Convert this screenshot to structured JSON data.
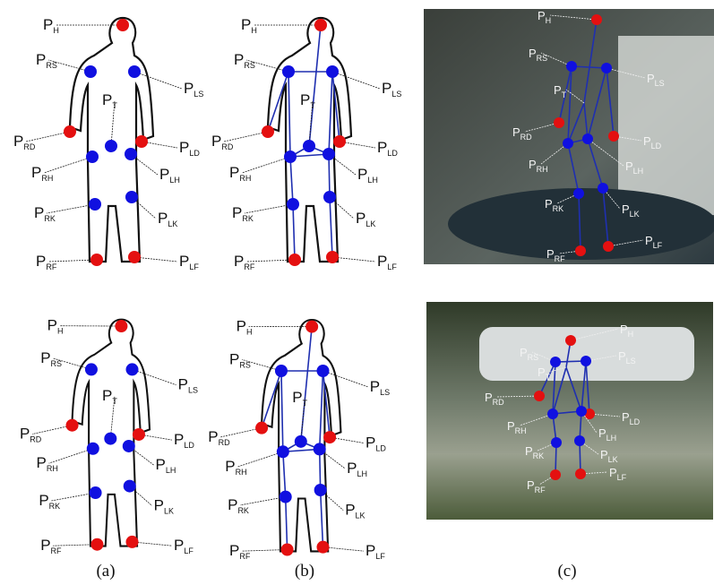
{
  "base": "P",
  "figures": [
    {
      "labels": [
        "H",
        "RS",
        "LS",
        "RD",
        "LD",
        "T",
        "RH",
        "LH",
        "RK",
        "LK",
        "RF",
        "LF"
      ]
    },
    {
      "labels": [
        "H",
        "RS",
        "LS",
        "RD",
        "LD",
        "T",
        "RH",
        "LH",
        "RK",
        "LK",
        "RF",
        "LF"
      ]
    },
    {
      "labels": [
        "H",
        "RS",
        "LS",
        "RD",
        "LD",
        "T",
        "RH",
        "LH",
        "RK",
        "LK",
        "RF",
        "LF"
      ]
    },
    {
      "labels": [
        "H",
        "RS",
        "LS",
        "RD",
        "LD",
        "T",
        "RH",
        "LH",
        "RK",
        "LK",
        "RF",
        "LF"
      ]
    },
    {
      "labels": [
        "H",
        "RS",
        "LS",
        "RD",
        "LD",
        "T",
        "RH",
        "LH",
        "RK",
        "LK",
        "RF",
        "LF"
      ]
    },
    {
      "labels": [
        "H",
        "RS",
        "LS",
        "RD",
        "LD",
        "T",
        "RH",
        "LH",
        "RK",
        "LK",
        "RF",
        "LF"
      ]
    }
  ],
  "captions": [
    "(a)",
    "(b)",
    "(c)"
  ]
}
